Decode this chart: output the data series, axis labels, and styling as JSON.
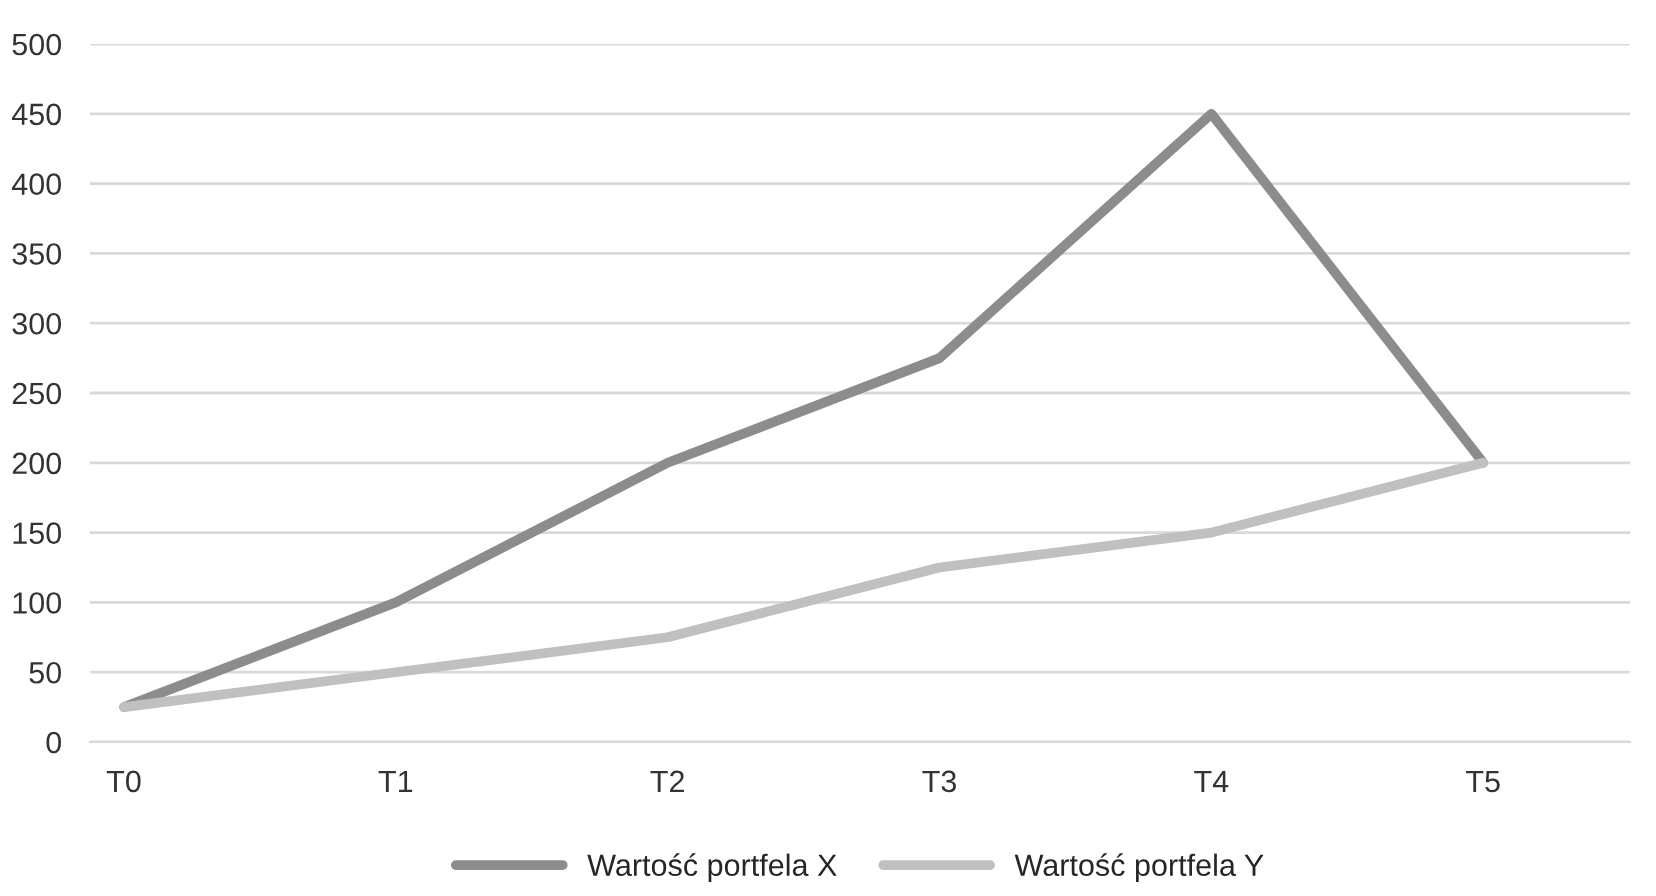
{
  "chart_data": {
    "type": "line",
    "categories": [
      "T0",
      "T1",
      "T2",
      "T3",
      "T4",
      "T5"
    ],
    "series": [
      {
        "name": "Wartość portfela X",
        "color": "#8c8c8c",
        "values": [
          25,
          100,
          200,
          275,
          450,
          200
        ]
      },
      {
        "name": "Wartość portfela Y",
        "color": "#c0c0c0",
        "values": [
          25,
          50,
          75,
          125,
          150,
          200
        ]
      }
    ],
    "ylim": [
      0,
      500
    ],
    "yticks": [
      0,
      50,
      100,
      150,
      200,
      250,
      300,
      350,
      400,
      450,
      500
    ],
    "grid": "y",
    "legend": "bottom",
    "marker": "none",
    "line_style": "solid"
  }
}
